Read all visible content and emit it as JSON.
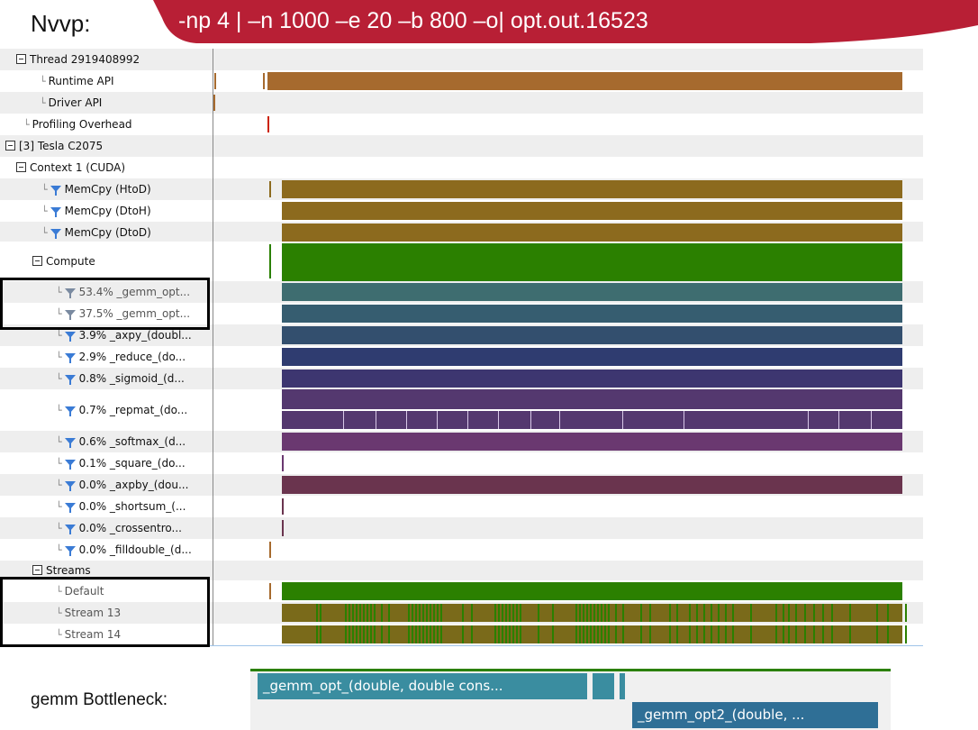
{
  "header": {
    "app_label": "Nvvp:",
    "command": "-np 4 | –n 1000 –e 20 –b 800 –o| opt.out.16523",
    "banner_color": "#b81f35"
  },
  "tree": [
    {
      "label": "Thread 2919408992",
      "kind": "group"
    },
    {
      "label": "Runtime API",
      "kind": "leaf"
    },
    {
      "label": "Driver API",
      "kind": "leaf"
    },
    {
      "label": "Profiling Overhead",
      "kind": "leaf"
    },
    {
      "label": "[3] Tesla C2075",
      "kind": "group"
    },
    {
      "label": "Context 1 (CUDA)",
      "kind": "group"
    },
    {
      "label": "MemCpy (HtoD)",
      "kind": "filter"
    },
    {
      "label": "MemCpy (DtoH)",
      "kind": "filter"
    },
    {
      "label": "MemCpy (DtoD)",
      "kind": "filter"
    },
    {
      "label": "Compute",
      "kind": "group"
    },
    {
      "label": "53.4% _gemm_opt...",
      "kind": "filter"
    },
    {
      "label": "37.5% _gemm_opt...",
      "kind": "filter"
    },
    {
      "label": "3.9% _axpy_(doubl...",
      "kind": "filter"
    },
    {
      "label": "2.9% _reduce_(do...",
      "kind": "filter"
    },
    {
      "label": "0.8% _sigmoid_(d...",
      "kind": "filter"
    },
    {
      "label": "0.7% _repmat_(do...",
      "kind": "filter"
    },
    {
      "label": "0.6% _softmax_(d...",
      "kind": "filter"
    },
    {
      "label": "0.1% _square_(do...",
      "kind": "filter"
    },
    {
      "label": "0.0% _axpby_(dou...",
      "kind": "filter"
    },
    {
      "label": "0.0% _shortsum_(...",
      "kind": "filter"
    },
    {
      "label": "0.0% _crossentro...",
      "kind": "filter"
    },
    {
      "label": "0.0% _filldouble_(d...",
      "kind": "filter"
    },
    {
      "label": "Streams",
      "kind": "group"
    },
    {
      "label": "Default",
      "kind": "leaf"
    },
    {
      "label": "Stream 13",
      "kind": "leaf"
    },
    {
      "label": "Stream 14",
      "kind": "leaf"
    }
  ],
  "lane_colors": {
    "runtime_api": "#a66a2e",
    "memcpy": "#8c6a1e",
    "compute": "#2b8000",
    "gemm_opt_a": "#3e6d70",
    "gemm_opt_b": "#365d70",
    "axpy": "#334f6e",
    "reduce": "#2f3c70",
    "sigmoid": "#3d3670",
    "repmat": "#54386f",
    "softmax": "#6a3870",
    "axpby": "#6a344e",
    "streams": "#2b8000",
    "stream_mix": "#7a6a1a",
    "overhead": "#cc2200"
  },
  "bottleneck": {
    "label": "gemm Bottleneck:",
    "bar1": "_gemm_opt_(double, double cons...",
    "bar2": "_gemm_opt2_(double, ..."
  }
}
